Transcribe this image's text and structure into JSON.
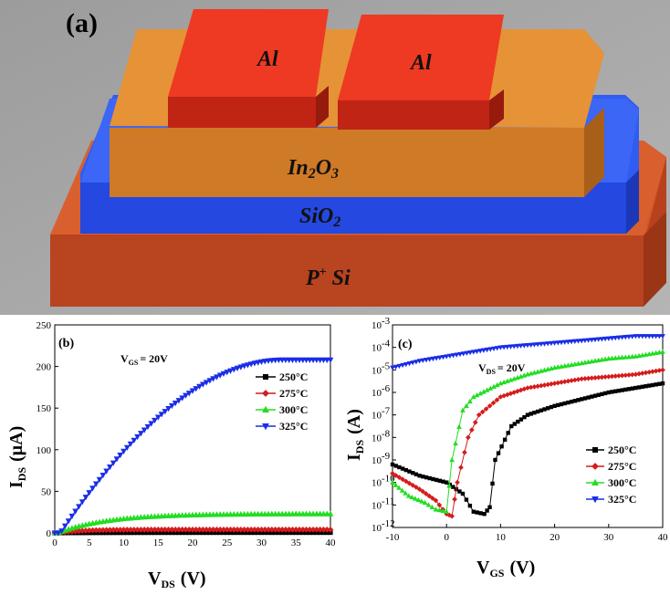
{
  "panel_a": {
    "label": "(a)",
    "layers": {
      "electrode_left": "Al",
      "electrode_right": "Al",
      "channel": "In2O3",
      "dielectric": "SiO2",
      "substrate": "P+ Si"
    },
    "colors": {
      "background": "#a8a8a8",
      "al": "#e8321e",
      "in2o3": "#e08a2a",
      "sio2": "#2a54f0",
      "psi": "#c84a22"
    }
  },
  "chart_data": [
    {
      "id": "b",
      "type": "line",
      "panel_label": "(b)",
      "annotation": "VGS = 20V",
      "annotation_main": "V",
      "annotation_sub": "GS",
      "annotation_rest": "= 20V",
      "xlabel_main": "V",
      "xlabel_sub": "DS",
      "xlabel_unit": "(V)",
      "ylabel_main": "I",
      "ylabel_sub": "DS",
      "ylabel_unit": "(μA)",
      "xlim": [
        0,
        40
      ],
      "ylim": [
        0,
        250
      ],
      "xticks": [
        "0",
        "5",
        "10",
        "15",
        "20",
        "25",
        "30",
        "35",
        "40"
      ],
      "yticks": [
        "0",
        "50",
        "100",
        "150",
        "200",
        "250"
      ],
      "legend_position": "right",
      "series": [
        {
          "name": "250°C",
          "color": "#000000",
          "marker": "square",
          "y_sat": 0.5,
          "k": 0.15
        },
        {
          "name": "275°C",
          "color": "#d41c1c",
          "marker": "diamond",
          "y_sat": 4,
          "k": 0.3
        },
        {
          "name": "300°C",
          "color": "#22dd22",
          "marker": "triangle-up",
          "y_sat": 23,
          "k": 0.14
        },
        {
          "name": "325°C",
          "color": "#1a2ee6",
          "marker": "triangle-down",
          "y_sat": 208,
          "k": 0.1
        }
      ]
    },
    {
      "id": "c",
      "type": "line",
      "panel_label": "(c)",
      "annotation_main": "V",
      "annotation_sub": "DS",
      "annotation_rest": "= 20V",
      "xlabel_main": "V",
      "xlabel_sub": "GS",
      "xlabel_unit": "(V)",
      "ylabel_main": "I",
      "ylabel_sub": "DS",
      "ylabel_unit": "(A)",
      "yscale": "log",
      "xlim": [
        -10,
        40
      ],
      "ylim_exp": [
        -12,
        -3
      ],
      "xticks": [
        "-10",
        "0",
        "10",
        "20",
        "30",
        "40"
      ],
      "ytick_exponents": [
        "-12",
        "-11",
        "-10",
        "-9",
        "-8",
        "-7",
        "-6",
        "-5",
        "-4",
        "-3"
      ],
      "legend_position": "lower-right",
      "series": [
        {
          "name": "250°C",
          "color": "#000000",
          "marker": "square",
          "x": [
            -10,
            -5,
            0,
            3,
            5,
            7,
            8,
            9,
            12,
            15,
            20,
            25,
            30,
            35,
            40
          ],
          "log10_y": [
            -9.2,
            -9.7,
            -10.0,
            -10.5,
            -11.3,
            -11.4,
            -11.1,
            -9.0,
            -7.5,
            -7.0,
            -6.6,
            -6.3,
            -6.0,
            -5.8,
            -5.6
          ]
        },
        {
          "name": "275°C",
          "color": "#d41c1c",
          "marker": "diamond",
          "x": [
            -10,
            -5,
            -2,
            0,
            1,
            2,
            4,
            6,
            10,
            15,
            20,
            25,
            30,
            35,
            40
          ],
          "log10_y": [
            -9.6,
            -10.3,
            -10.8,
            -11.4,
            -11.5,
            -10.0,
            -8.0,
            -7.0,
            -6.2,
            -5.8,
            -5.6,
            -5.4,
            -5.3,
            -5.2,
            -5.0
          ]
        },
        {
          "name": "300°C",
          "color": "#22dd22",
          "marker": "triangle-up",
          "x": [
            -10,
            -7,
            -4,
            -2,
            0,
            1,
            3,
            5,
            10,
            15,
            20,
            25,
            30,
            35,
            40
          ],
          "log10_y": [
            -10.0,
            -10.6,
            -10.9,
            -11.2,
            -11.3,
            -9.0,
            -6.8,
            -6.2,
            -5.6,
            -5.2,
            -4.9,
            -4.7,
            -4.5,
            -4.4,
            -4.2
          ]
        },
        {
          "name": "325°C",
          "color": "#1a2ee6",
          "marker": "triangle-down",
          "x": [
            -10,
            -5,
            0,
            5,
            10,
            15,
            20,
            25,
            30,
            35,
            40
          ],
          "log10_y": [
            -4.9,
            -4.6,
            -4.4,
            -4.2,
            -4.0,
            -3.9,
            -3.8,
            -3.7,
            -3.6,
            -3.5,
            -3.5
          ]
        }
      ]
    }
  ]
}
